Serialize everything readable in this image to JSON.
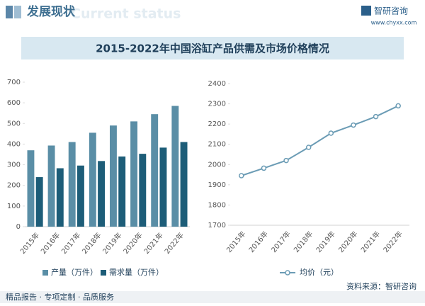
{
  "header": {
    "section": "发展现状",
    "section_en": "Current status",
    "brand": "智研咨询",
    "website": "www.chyxx.com"
  },
  "banner_title": "2015-2022年中国浴缸产品供需及市场价格情况",
  "footer": {
    "services": "精品报告 · 专项定制 · 品质服务",
    "source": "资料来源：智研咨询"
  },
  "chart_data": [
    {
      "type": "bar",
      "categories": [
        "2015年",
        "2016年",
        "2017年",
        "2018年",
        "2019年",
        "2020年",
        "2021年",
        "2022年"
      ],
      "series": [
        {
          "name": "产量（万件）",
          "color": "#5a8ea6",
          "values": [
            370,
            393,
            410,
            455,
            490,
            510,
            545,
            585
          ]
        },
        {
          "name": "需求量（万件）",
          "color": "#1d5d78",
          "values": [
            240,
            283,
            296,
            318,
            340,
            353,
            383,
            410
          ]
        }
      ],
      "ylim": [
        0,
        700
      ],
      "yticks": [
        0,
        100,
        200,
        300,
        400,
        500,
        600,
        700
      ],
      "grid": false
    },
    {
      "type": "line",
      "categories": [
        "2015年",
        "2016年",
        "2017年",
        "2018年",
        "2019年",
        "2020年",
        "2021年",
        "2022年"
      ],
      "series": [
        {
          "name": "均价（元）",
          "color": "#6b9cb5",
          "values": [
            1945,
            1982,
            2020,
            2085,
            2155,
            2195,
            2237,
            2290
          ]
        }
      ],
      "ylim": [
        1700,
        2400
      ],
      "yticks": [
        1700,
        1800,
        1900,
        2000,
        2100,
        2200,
        2300,
        2400
      ],
      "grid": false
    }
  ]
}
